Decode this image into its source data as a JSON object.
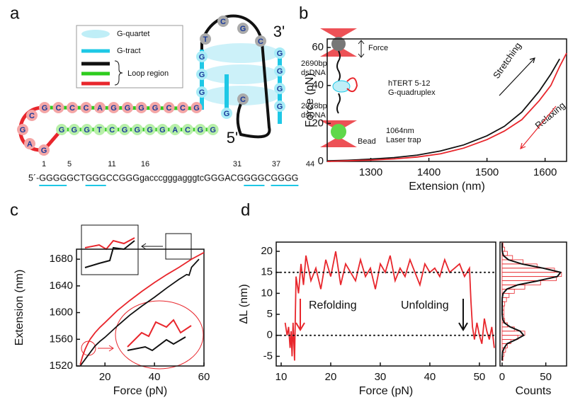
{
  "panel_labels": [
    "a",
    "b",
    "c",
    "d"
  ],
  "diagram": {
    "legend": [
      "G-quartet",
      "G-tract",
      "Loop region"
    ],
    "ends": [
      "3'",
      "5'"
    ],
    "nucleotides": [
      "G",
      "C",
      "C",
      "C",
      "A",
      "G",
      "G",
      "G",
      "G",
      "C",
      "C",
      "G",
      "G",
      "G",
      "G",
      "T",
      "C",
      "G",
      "G",
      "G",
      "G",
      "A",
      "C",
      "G",
      "G",
      "C",
      "G",
      "A",
      "G",
      "T",
      "C",
      "G",
      "C",
      "G",
      "G",
      "G",
      "G",
      "G",
      "G",
      "G",
      "C",
      "G"
    ],
    "sequence_numbers": [
      "1",
      "5",
      "11",
      "16",
      "31",
      "37",
      "44"
    ],
    "sequence": [
      {
        "text": "5´-",
        "color": "#111111"
      },
      {
        "text": "GGGG",
        "color": "#1ec8e6"
      },
      {
        "text": "GCT",
        "color": "#111111"
      },
      {
        "text": "GGG",
        "color": "#1ec8e6"
      },
      {
        "text": "CCGGG",
        "color": "#2ecc1e"
      },
      {
        "text": "gacccgggagggtc",
        "color": "#e8262c"
      },
      {
        "text": "GGGACG",
        "color": "#2ecc1e"
      },
      {
        "text": "GGG",
        "color": "#1ec8e6"
      },
      {
        "text": "C",
        "color": "#111111"
      },
      {
        "text": "GGGG",
        "color": "#1ec8e6"
      }
    ]
  },
  "chart_data": [
    {
      "type": "line",
      "xlabel": "Extension (nm)",
      "ylabel": "Force (pN)",
      "xlim": [
        1225,
        1637
      ],
      "xticks": [
        1300,
        1400,
        1500,
        1600
      ],
      "ylim": [
        0,
        64.5
      ],
      "yticks": [
        0,
        20,
        40,
        60
      ],
      "annotations": [
        [
          "Force"
        ],
        [
          "2690bp",
          "dsDNA"
        ],
        [
          "hTERT 5-12",
          "G-quadruplex"
        ],
        [
          "2028bp",
          "dsDNA"
        ],
        [
          "Bead"
        ],
        [
          "1064nm",
          "Laser trap"
        ]
      ],
      "series": [
        {
          "name": "Stretching",
          "color": "#111111",
          "x": [
            1225,
            1260,
            1300,
            1340,
            1380,
            1420,
            1460,
            1500,
            1530,
            1560,
            1590,
            1610,
            1625
          ],
          "values": [
            0.3,
            0.6,
            1.2,
            2,
            3.3,
            5.5,
            8.7,
            13.5,
            18.5,
            26,
            37,
            46,
            54
          ]
        },
        {
          "name": "Relaxing",
          "color": "#e8262c",
          "x": [
            1225,
            1260,
            1300,
            1340,
            1380,
            1420,
            1460,
            1500,
            1530,
            1560,
            1590,
            1610,
            1625,
            1637
          ],
          "values": [
            0,
            0.3,
            0.7,
            1.3,
            2.3,
            4,
            7,
            11.5,
            16,
            22,
            32,
            40,
            50,
            57
          ]
        }
      ]
    },
    {
      "type": "line",
      "xlabel": "Force (pN)",
      "ylabel": "Extension (nm)",
      "xlim": [
        8.5,
        60
      ],
      "xticks": [
        20,
        40,
        60
      ],
      "ylim": [
        1520,
        1695
      ],
      "yticks": [
        1520,
        1560,
        1600,
        1640,
        1680
      ],
      "series": [
        {
          "color": "#111111",
          "x": [
            10,
            12,
            14,
            16,
            18,
            20,
            25,
            30,
            35,
            40,
            45,
            50,
            53,
            54,
            55,
            58
          ],
          "values": [
            1520,
            1530,
            1540,
            1550,
            1557,
            1563,
            1580,
            1596,
            1610,
            1623,
            1637,
            1650,
            1657,
            1656,
            1668,
            1680
          ]
        },
        {
          "color": "#e8262c",
          "x": [
            10,
            11,
            12,
            13,
            14,
            16,
            18,
            20,
            25,
            30,
            35,
            40,
            45,
            50,
            55,
            60
          ],
          "values": [
            1522,
            1535,
            1545,
            1553,
            1560,
            1570,
            1578,
            1585,
            1603,
            1618,
            1632,
            1645,
            1657,
            1668,
            1680,
            1690
          ]
        }
      ]
    },
    {
      "type": "line",
      "xlabel": "Force (pN)",
      "ylabel": "ΔL (nm)",
      "xlim": [
        9,
        53.3
      ],
      "xticks": [
        10,
        20,
        30,
        40,
        50
      ],
      "ylim": [
        -7.3,
        22.2
      ],
      "yticks": [
        -5,
        0,
        5,
        10,
        15,
        20
      ],
      "hlines": [
        15,
        0
      ],
      "annotations": [
        "Refolding",
        "Unfolding"
      ],
      "series": [
        {
          "color": "#e8262c",
          "x": [
            10.8,
            11.2,
            11.5,
            11.8,
            12.0,
            12.2,
            12.4,
            12.7,
            13.0,
            13.5,
            14,
            14.5,
            15,
            16,
            17,
            18,
            19,
            20,
            21,
            22,
            23,
            24,
            25,
            26,
            27,
            28,
            29,
            30,
            31,
            32,
            33,
            34,
            35,
            36,
            37,
            38,
            39,
            40,
            41,
            42,
            43,
            44,
            45,
            46,
            47,
            48,
            48.3,
            48.6,
            49,
            49.5,
            50,
            50.5,
            51,
            51.5,
            52,
            52.5,
            53
          ],
          "values": [
            3,
            0,
            2,
            -3,
            1,
            -5,
            3,
            -6,
            14,
            10,
            17,
            12,
            19,
            13,
            16,
            11,
            18,
            14,
            20,
            12,
            17,
            15,
            13,
            18,
            14,
            16,
            11,
            17,
            15,
            19,
            13,
            16,
            14,
            18,
            15,
            12,
            17,
            15,
            16,
            14,
            18,
            15,
            16,
            17,
            14,
            16,
            8,
            2,
            -1,
            3,
            0,
            -2,
            4,
            1,
            -1,
            2,
            -3
          ]
        }
      ]
    },
    {
      "type": "histogram",
      "orientation": "horizontal",
      "xlabel": "Counts",
      "xlim": [
        -2.4,
        73.8
      ],
      "xticks": [
        0,
        50
      ],
      "ylim": [
        -7.3,
        22.2
      ],
      "color": "#e8262c",
      "bins": [
        -6,
        -5,
        -4,
        -3,
        -2,
        -1,
        0,
        1,
        2,
        3,
        4,
        5,
        6,
        7,
        8,
        9,
        10,
        11,
        12,
        13,
        14,
        15,
        16,
        17,
        18,
        19,
        20,
        21,
        22
      ],
      "values": [
        1,
        2,
        4,
        6,
        10,
        18,
        26,
        14,
        6,
        3,
        2,
        2,
        2,
        3,
        5,
        8,
        14,
        26,
        44,
        62,
        68,
        60,
        40,
        24,
        12,
        6,
        3,
        1
      ],
      "fit": {
        "color": "#111111",
        "y": [
          -6,
          -5,
          -4,
          -3,
          -2,
          -1,
          0,
          1,
          2,
          3,
          4,
          5,
          6,
          7,
          8,
          9,
          10,
          11,
          12,
          13,
          14,
          15,
          16,
          17,
          18,
          19,
          20,
          21,
          22
        ],
        "values": [
          0,
          0.1,
          0.4,
          2.4,
          5.6,
          16.1,
          24.7,
          20.7,
          9.2,
          2.4,
          0.5,
          0,
          0,
          0,
          0,
          0.2,
          1.1,
          5.5,
          17.8,
          41.4,
          63.3,
          66.9,
          46.9,
          22.4,
          7.2,
          1.5,
          0.2,
          0,
          0
        ]
      }
    }
  ]
}
